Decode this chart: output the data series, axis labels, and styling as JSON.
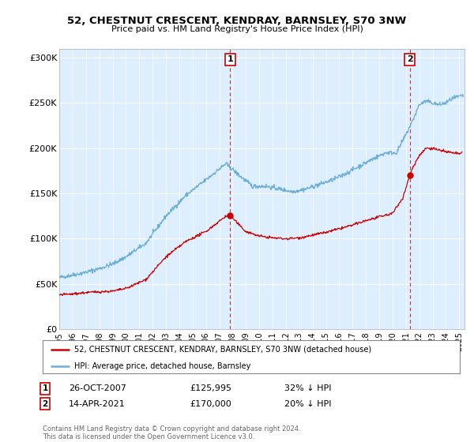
{
  "title": "52, CHESTNUT CRESCENT, KENDRAY, BARNSLEY, S70 3NW",
  "subtitle": "Price paid vs. HM Land Registry's House Price Index (HPI)",
  "ylabel_ticks": [
    "£0",
    "£50K",
    "£100K",
    "£150K",
    "£200K",
    "£250K",
    "£300K"
  ],
  "ytick_values": [
    0,
    50000,
    100000,
    150000,
    200000,
    250000,
    300000
  ],
  "ylim": [
    0,
    310000
  ],
  "xlim_start": 1995.0,
  "xlim_end": 2025.4,
  "hpi_color": "#6baed6",
  "price_color": "#cc0000",
  "plot_bg_color": "#ddeeff",
  "marker1_date": 2007.82,
  "marker1_price": 125995,
  "marker2_date": 2021.29,
  "marker2_price": 170000,
  "legend_line1": "52, CHESTNUT CRESCENT, KENDRAY, BARNSLEY, S70 3NW (detached house)",
  "legend_line2": "HPI: Average price, detached house, Barnsley",
  "footer": "Contains HM Land Registry data © Crown copyright and database right 2024.\nThis data is licensed under the Open Government Licence v3.0.",
  "bg_color": "#ffffff",
  "grid_color": "#aaaaaa",
  "xticks": [
    1995,
    1996,
    1997,
    1998,
    1999,
    2000,
    2001,
    2002,
    2003,
    2004,
    2005,
    2006,
    2007,
    2008,
    2009,
    2010,
    2011,
    2012,
    2013,
    2014,
    2015,
    2016,
    2017,
    2018,
    2019,
    2020,
    2021,
    2022,
    2023,
    2024,
    2025
  ]
}
